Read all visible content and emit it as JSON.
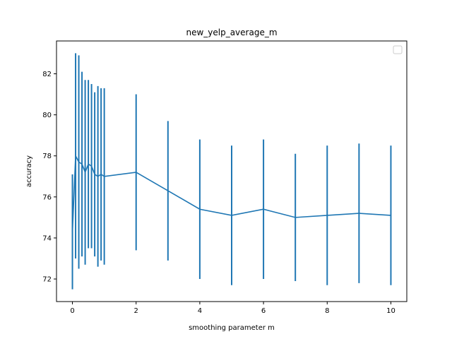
{
  "chart_data": {
    "type": "line",
    "title": "new_yelp_average_m",
    "xlabel": "smoothing parameter m",
    "ylabel": "accuracy",
    "xlim": [
      -0.5,
      10.5
    ],
    "ylim": [
      70.9,
      83.6
    ],
    "xticks": [
      0,
      2,
      4,
      6,
      8,
      10
    ],
    "yticks": [
      72,
      74,
      76,
      78,
      80,
      82
    ],
    "legend": "top-right",
    "legend_entries": [],
    "grid": false,
    "color": "#1f77b4",
    "series": [
      {
        "x": [
          0,
          0.1,
          0.2,
          0.3,
          0.4,
          0.5,
          0.6,
          0.7,
          0.8,
          0.9,
          1,
          2,
          3,
          4,
          5,
          6,
          7,
          8,
          9,
          10
        ],
        "y": [
          74.3,
          78.0,
          77.7,
          77.6,
          77.2,
          77.6,
          77.5,
          77.1,
          77.0,
          77.1,
          77.0,
          77.2,
          76.3,
          75.4,
          75.1,
          75.4,
          75.0,
          75.1,
          75.2,
          75.1
        ],
        "yerr": [
          2.8,
          5.0,
          5.2,
          4.5,
          4.5,
          4.1,
          4.0,
          4.0,
          4.4,
          4.2,
          4.3,
          3.8,
          3.4,
          3.4,
          3.4,
          3.4,
          3.1,
          3.4,
          3.4,
          3.4
        ]
      }
    ]
  }
}
